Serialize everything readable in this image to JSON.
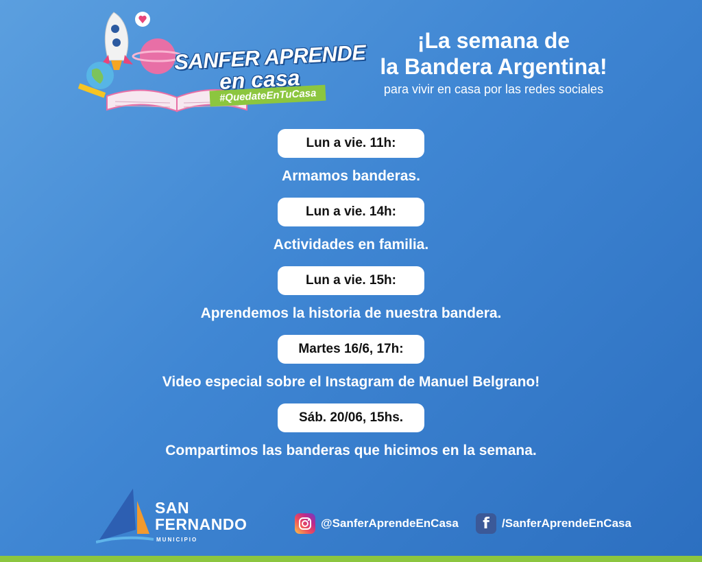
{
  "logo": {
    "title_line1": "SANFER APRENDE",
    "title_line2": "en casa",
    "hashtag": "#QuedateEnTuCasa"
  },
  "header": {
    "title_line1": "¡La semana de",
    "title_line2": "la Bandera Argentina!",
    "subtitle": "para vivir en casa por las redes sociales"
  },
  "schedule": [
    {
      "time": "Lun a vie. 11h:",
      "activity": "Armamos banderas."
    },
    {
      "time": "Lun a vie. 14h:",
      "activity": "Actividades en familia."
    },
    {
      "time": "Lun a vie. 15h:",
      "activity": "Aprendemos la historia de nuestra bandera."
    },
    {
      "time": "Martes 16/6, 17h:",
      "activity": "Video especial sobre el Instagram de Manuel Belgrano!"
    },
    {
      "time": "Sáb. 20/06, 15hs.",
      "activity": "Compartimos las banderas que hicimos en la semana."
    }
  ],
  "footer": {
    "brand_line1": "SAN",
    "brand_line2": "FERNANDO",
    "brand_sub": "MUNICIPIO",
    "instagram": {
      "icon": "instagram-icon",
      "handle": "@SanferAprendeEnCasa"
    },
    "facebook": {
      "icon": "facebook-icon",
      "handle": "/SanferAprendeEnCasa"
    }
  },
  "colors": {
    "background_start": "#5b9fdf",
    "background_end": "#2c6fc0",
    "accent_green": "#8cc63f",
    "pill_bg": "#ffffff"
  }
}
